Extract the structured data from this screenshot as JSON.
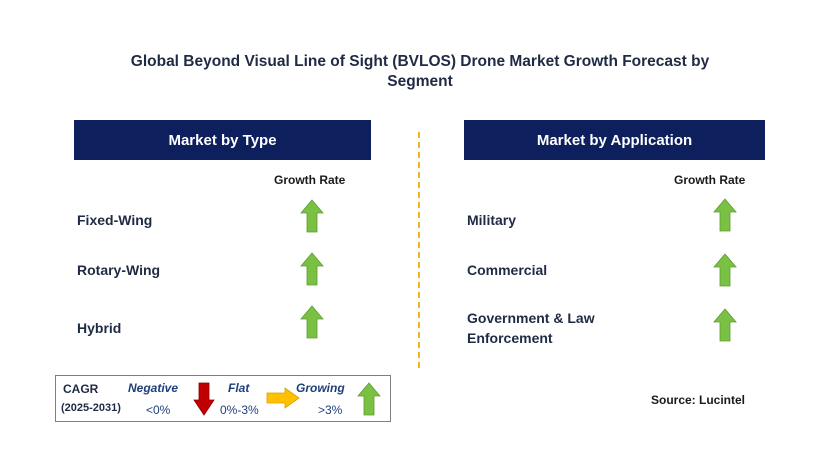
{
  "title": "Global Beyond Visual Line of Sight (BVLOS) Drone Market Growth Forecast by Segment",
  "colors": {
    "header_bg": "#0d1f5c",
    "growing": "#7ac143",
    "negative": "#c00000",
    "flat": "#ffc000",
    "divider": "#f2b51c"
  },
  "left_panel": {
    "header": "Market by Type",
    "growth_label": "Growth Rate",
    "items": [
      {
        "label": "Fixed-Wing",
        "trend": "growing",
        "icon": "up-arrow-icon"
      },
      {
        "label": "Rotary-Wing",
        "trend": "growing",
        "icon": "up-arrow-icon"
      },
      {
        "label": "Hybrid",
        "trend": "growing",
        "icon": "up-arrow-icon"
      }
    ]
  },
  "right_panel": {
    "header": "Market by Application",
    "growth_label": "Growth Rate",
    "items": [
      {
        "label": "Military",
        "trend": "growing",
        "icon": "up-arrow-icon"
      },
      {
        "label": "Commercial",
        "trend": "growing",
        "icon": "up-arrow-icon"
      },
      {
        "label": "Government & Law Enforcement",
        "label_lines": [
          "Government & Law",
          "Enforcement"
        ],
        "trend": "growing",
        "icon": "up-arrow-icon"
      }
    ]
  },
  "legend": {
    "cagr_label": "CAGR",
    "period": "(2025-2031)",
    "negative_label": "Negative",
    "negative_value": "<0%",
    "flat_label": "Flat",
    "flat_value": "0%-3%",
    "growing_label": "Growing",
    "growing_value": ">3%"
  },
  "source": "Source: Lucintel"
}
